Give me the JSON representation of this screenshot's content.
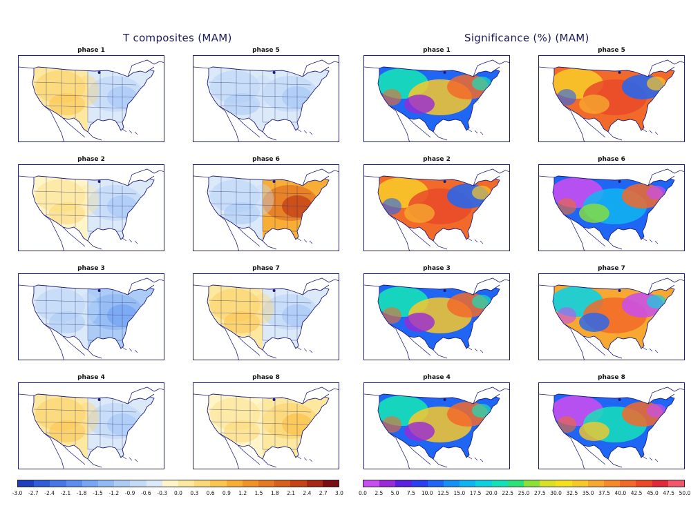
{
  "left_title": "T composites (MAM)",
  "right_title": "Significance (%) (MAM)",
  "colors": {
    "frame": "#1b1b7a",
    "land_outline": "#1b1b7a"
  },
  "panels": [
    {
      "label": "phase 1",
      "group": "temp",
      "col": 0,
      "row": 0,
      "pattern": {
        "west": "warm",
        "east": "cool"
      }
    },
    {
      "label": "phase 5",
      "group": "temp",
      "col": 1,
      "row": 0,
      "pattern": {
        "west": "cool",
        "east": "cool"
      }
    },
    {
      "label": "phase 2",
      "group": "temp",
      "col": 0,
      "row": 1,
      "pattern": {
        "west": "warm-light",
        "east": "cool"
      }
    },
    {
      "label": "phase 6",
      "group": "temp",
      "col": 1,
      "row": 1,
      "pattern": {
        "west": "cool",
        "east": "warm-strong"
      }
    },
    {
      "label": "phase 3",
      "group": "temp",
      "col": 0,
      "row": 2,
      "pattern": {
        "west": "cool",
        "east": "cool-strong"
      }
    },
    {
      "label": "phase 7",
      "group": "temp",
      "col": 1,
      "row": 2,
      "pattern": {
        "west": "warm",
        "east": "cool"
      }
    },
    {
      "label": "phase 4",
      "group": "temp",
      "col": 0,
      "row": 3,
      "pattern": {
        "west": "warm",
        "east": "cool"
      }
    },
    {
      "label": "phase 8",
      "group": "temp",
      "col": 1,
      "row": 3,
      "pattern": {
        "west": "warm-light",
        "east": "warm"
      }
    },
    {
      "label": "phase 1",
      "group": "sig",
      "col": 2,
      "row": 0,
      "pattern": "mixed-cool"
    },
    {
      "label": "phase 5",
      "group": "sig",
      "col": 3,
      "row": 0,
      "pattern": "mostly-warm"
    },
    {
      "label": "phase 2",
      "group": "sig",
      "col": 2,
      "row": 1,
      "pattern": "mostly-warm"
    },
    {
      "label": "phase 6",
      "group": "sig",
      "col": 3,
      "row": 1,
      "pattern": "purple-center"
    },
    {
      "label": "phase 3",
      "group": "sig",
      "col": 2,
      "row": 2,
      "pattern": "mixed-cool"
    },
    {
      "label": "phase 7",
      "group": "sig",
      "col": 3,
      "row": 2,
      "pattern": "mixed-warm"
    },
    {
      "label": "phase 4",
      "group": "sig",
      "col": 2,
      "row": 3,
      "pattern": "mixed-cool"
    },
    {
      "label": "phase 8",
      "group": "sig",
      "col": 3,
      "row": 3,
      "pattern": "purple-north"
    }
  ],
  "temp_colorbar": {
    "colors": [
      "#1f3fbf",
      "#2f5fd8",
      "#4677e6",
      "#5b8eee",
      "#77a6f2",
      "#92bbf5",
      "#acccf6",
      "#c4dbf7",
      "#dce9f8",
      "#fff5c8",
      "#fde8a0",
      "#fcd878",
      "#fbc552",
      "#f7ad36",
      "#f0942a",
      "#e57a24",
      "#d8601d",
      "#c44418",
      "#a82816",
      "#7a0c14"
    ],
    "ticks": [
      "-3.0",
      "-2.7",
      "-2.4",
      "-2.1",
      "-1.8",
      "-1.5",
      "-1.2",
      "-0.9",
      "-0.6",
      "-0.3",
      "0.0",
      "0.3",
      "0.6",
      "0.9",
      "1.2",
      "1.5",
      "1.8",
      "2.1",
      "2.4",
      "2.7",
      "3.0"
    ]
  },
  "sig_colorbar": {
    "colors": [
      "#c84ef0",
      "#9a2bd6",
      "#5a22e0",
      "#2a3ff0",
      "#2066f5",
      "#1690f5",
      "#10b5f0",
      "#10d0e0",
      "#16e0b8",
      "#2ce07a",
      "#8be03a",
      "#d8e028",
      "#f5e020",
      "#f7c82a",
      "#f6a830",
      "#f58a2c",
      "#f26a2a",
      "#ea4a2a",
      "#e02a3a",
      "#ee5a6a"
    ],
    "ticks": [
      "0.0",
      "2.5",
      "5.0",
      "7.5",
      "10.0",
      "12.5",
      "15.0",
      "17.5",
      "20.0",
      "22.5",
      "25.0",
      "27.5",
      "30.0",
      "32.5",
      "35.0",
      "37.5",
      "40.0",
      "42.5",
      "45.0",
      "47.5",
      "50.0"
    ]
  }
}
